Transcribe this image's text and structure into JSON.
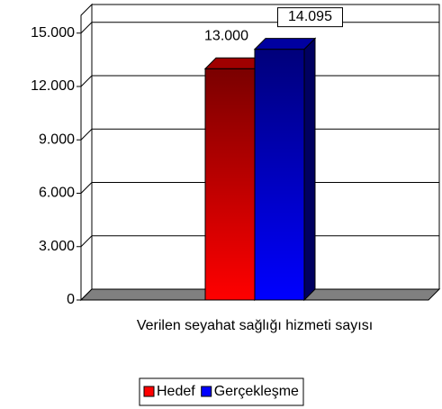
{
  "chart_data": {
    "type": "bar3d",
    "categories": [
      "Verilen seyahat sağlığı hizmeti sayısı"
    ],
    "series": [
      {
        "name": "Hedef",
        "color": "#ff0000",
        "values": [
          13000
        ],
        "value_labels": [
          "13.000"
        ]
      },
      {
        "name": "Gerçekleşme",
        "color": "#0000ff",
        "values": [
          14095
        ],
        "value_labels": [
          "14.095"
        ]
      }
    ],
    "ylim": [
      0,
      16000
    ],
    "yticks": [
      0,
      {
        "value": 3000,
        "label": "3.000"
      },
      {
        "value": 6000,
        "label": "6.000"
      },
      {
        "value": 9000,
        "label": "9.000"
      },
      {
        "value": 12000,
        "label": "12.000"
      },
      {
        "value": 15000,
        "label": "15.000"
      }
    ],
    "grid": true
  }
}
